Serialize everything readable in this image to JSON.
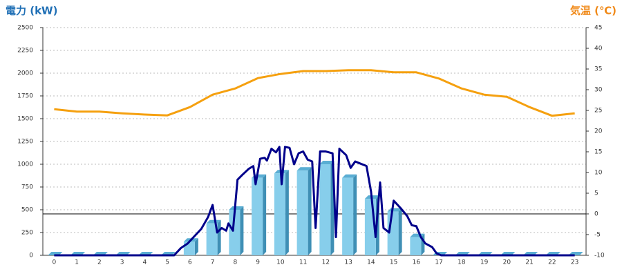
{
  "chart_data": {
    "type": "bar",
    "y_label": "電力 (kW)",
    "y2_label": "気温 (℃)",
    "categories": [
      "0",
      "1",
      "2",
      "3",
      "4",
      "5",
      "6",
      "7",
      "8",
      "9",
      "10",
      "11",
      "12",
      "13",
      "14",
      "15",
      "16",
      "17",
      "18",
      "19",
      "20",
      "21",
      "22",
      "23"
    ],
    "ylim": [
      0,
      2500
    ],
    "yticks": [
      0,
      250,
      500,
      750,
      1000,
      1250,
      1500,
      1750,
      2000,
      2250,
      2500
    ],
    "y2lim": [
      -10,
      45
    ],
    "y2ticks": [
      -10,
      -5,
      0,
      5,
      10,
      15,
      20,
      25,
      30,
      35,
      40,
      45
    ],
    "y2_reference": 0,
    "grid": true,
    "series": [
      {
        "type": "bar",
        "color": "#87ceeb",
        "values": [
          0,
          0,
          0,
          0,
          0,
          0,
          150,
          350,
          500,
          850,
          900,
          930,
          1000,
          850,
          620,
          480,
          200,
          0,
          0,
          0,
          0,
          0,
          0,
          0
        ]
      },
      {
        "type": "line",
        "axis": "y2",
        "color": "#f5a00f",
        "values": [
          25.3,
          24.7,
          24.7,
          24.3,
          24,
          23.8,
          25.8,
          28.8,
          30.3,
          32.8,
          33.8,
          34.5,
          34.5,
          34.7,
          34.7,
          34.2,
          34.2,
          32.7,
          30.3,
          28.8,
          28.3,
          25.8,
          23.7,
          24.3
        ]
      },
      {
        "type": "line",
        "color": "#00008b",
        "x": [
          0,
          5.3,
          5.6,
          5.9,
          6.2,
          6.5,
          6.8,
          7.0,
          7.2,
          7.4,
          7.6,
          7.7,
          7.9,
          8.1,
          8.3,
          8.6,
          8.8,
          8.9,
          9.1,
          9.3,
          9.4,
          9.6,
          9.8,
          9.95,
          10.05,
          10.2,
          10.4,
          10.6,
          10.8,
          11.0,
          11.2,
          11.4,
          11.55,
          11.75,
          12.0,
          12.3,
          12.45,
          12.6,
          12.9,
          13.1,
          13.3,
          13.5,
          13.8,
          14.0,
          14.2,
          14.4,
          14.55,
          14.8,
          15.0,
          15.3,
          15.6,
          15.8,
          16.0,
          16.2,
          16.4,
          16.7,
          16.9,
          17.1,
          23
        ],
        "values": [
          0,
          0,
          80,
          130,
          210,
          290,
          420,
          553,
          250,
          300,
          270,
          350,
          270,
          830,
          880,
          950,
          980,
          780,
          1060,
          1070,
          1040,
          1170,
          1130,
          1190,
          780,
          1190,
          1180,
          1000,
          1120,
          1140,
          1050,
          1030,
          300,
          1140,
          1140,
          1120,
          200,
          1170,
          1100,
          960,
          1030,
          1010,
          980,
          700,
          200,
          800,
          300,
          250,
          600,
          520,
          430,
          330,
          320,
          200,
          130,
          90,
          20,
          0,
          0
        ]
      }
    ]
  }
}
